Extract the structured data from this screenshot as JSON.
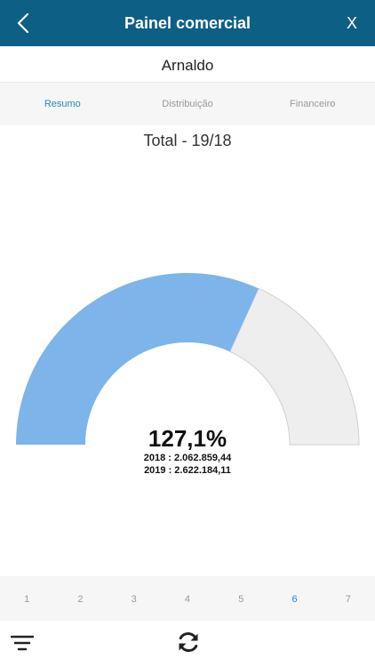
{
  "header": {
    "title": "Painel comercial",
    "back_icon": "chevron-left-icon",
    "close_label": "X"
  },
  "user": {
    "name": "Arnaldo"
  },
  "tabs": [
    {
      "label": "Resumo",
      "active": true
    },
    {
      "label": "Distribuição",
      "active": false
    },
    {
      "label": "Financeiro",
      "active": false
    }
  ],
  "summary": {
    "title": "Total - 19/18",
    "percent_label": "127,1%",
    "line_2018": "2018 : 2.062.859,44",
    "line_2019": "2019 : 2.622.184,11"
  },
  "chart_data": {
    "type": "gauge",
    "filled_fraction": 0.636,
    "colors": {
      "filled": "#7db4ea",
      "remaining": "#eeeeee"
    }
  },
  "pager": {
    "pages": [
      "1",
      "2",
      "3",
      "4",
      "5",
      "6",
      "7"
    ],
    "active_index": 5
  },
  "toolbar": {
    "filter_icon": "filter-icon",
    "refresh_icon": "refresh-icon"
  },
  "colors": {
    "header_bg": "#0e5f86",
    "accent": "#2a87c8"
  }
}
